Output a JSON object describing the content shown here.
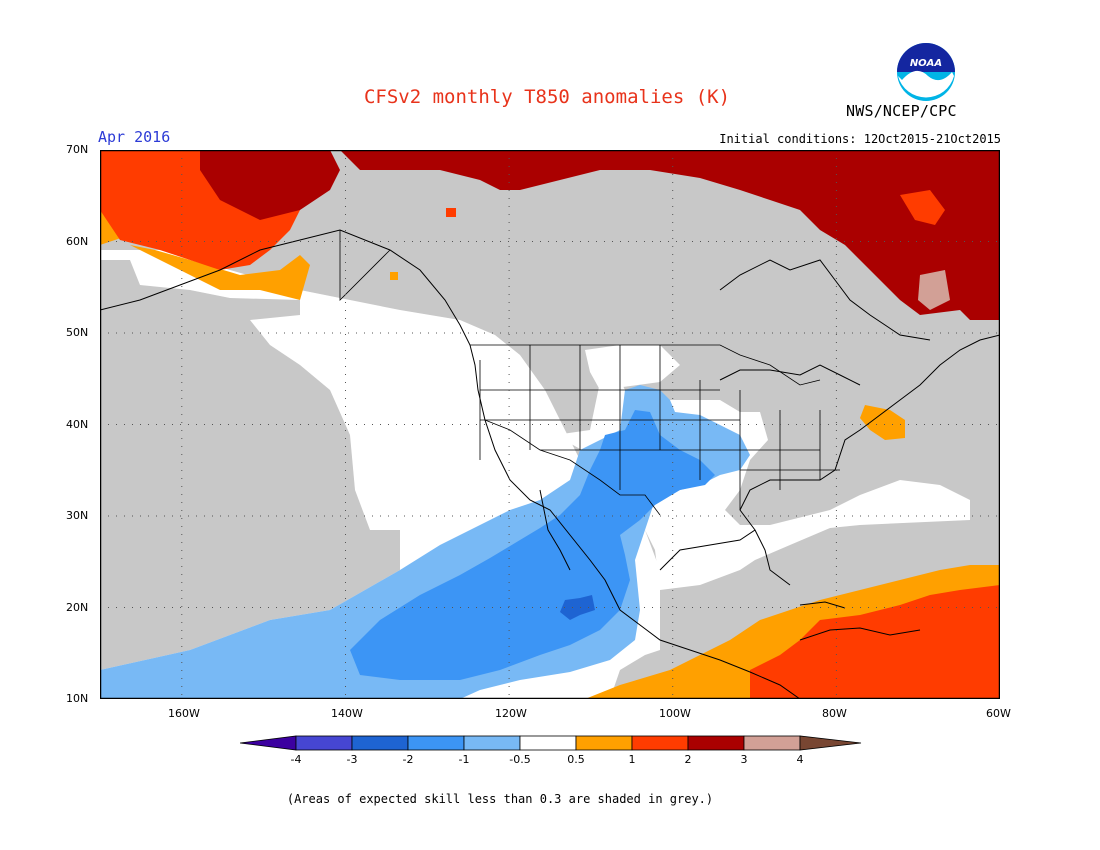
{
  "header": {
    "title": "CFSv2 monthly T850 anomalies (K)",
    "agency": "NWS/NCEP/CPC",
    "logo_text": "NOAA",
    "valid_month": "Apr 2016",
    "initial_conditions": "Initial conditions: 12Oct2015-21Oct2015"
  },
  "map": {
    "projection": "cylindrical",
    "lon_range": [
      -170,
      -60
    ],
    "lat_range": [
      10,
      70
    ],
    "lat_labels": [
      "70N",
      "60N",
      "50N",
      "40N",
      "30N",
      "20N",
      "10N"
    ],
    "lon_labels": [
      "160W",
      "140W",
      "120W",
      "100W",
      "80W",
      "60W"
    ],
    "gridlines": "dotted",
    "colors": {
      "grey_low_skill": "#c8c8c8",
      "white": "#ffffff",
      "light_blue": "#78b9f5",
      "medium_blue": "#3c95f5",
      "dark_blue": "#1e64d2",
      "orange": "#ffa000",
      "red_orange": "#ff3c00",
      "dark_red": "#aa0000",
      "pink_brown": "#d2a096"
    }
  },
  "legend": {
    "boundaries": [
      "-4",
      "-3",
      "-2",
      "-1",
      "-0.5",
      "0.5",
      "1",
      "2",
      "3",
      "4"
    ],
    "colors": [
      "#3c00a0",
      "#4646d2",
      "#1e64d2",
      "#3c95f5",
      "#78b9f5",
      "#ffffff",
      "#ffa000",
      "#ff3c00",
      "#aa0000",
      "#d2a096",
      "#784632"
    ]
  },
  "footnote": "(Areas of expected skill less than 0.3 are shaded in grey.)"
}
